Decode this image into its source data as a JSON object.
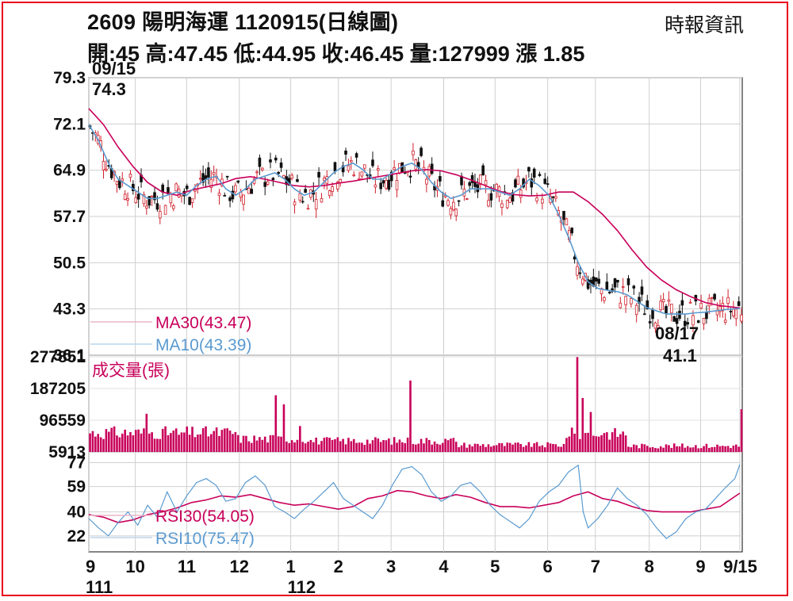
{
  "header": {
    "title": "2609  陽明海運 1120915(日線圖)",
    "source": "時報資訊",
    "quote": "開:45 高:47.45 低:44.95 收:46.45 量:127999 漲 1.85"
  },
  "chart_data": {
    "type": "line",
    "title": "2609 陽明海運 1120915(日線圖)",
    "price": {
      "y_ticks": [
        "79.3",
        "72.1",
        "64.9",
        "57.7",
        "50.5",
        "43.3",
        "36.1"
      ],
      "ylim": [
        36.1,
        79.3
      ],
      "annotations": [
        {
          "date": "09/15",
          "value": "74.3",
          "type": "high"
        },
        {
          "date": "08/17",
          "value": "41.1",
          "type": "low"
        }
      ],
      "series": [
        {
          "name": "MA30(43.47)",
          "color": "#c8005a",
          "x": [
            0,
            12,
            24,
            36,
            48,
            60,
            72,
            84,
            96,
            108,
            120,
            132,
            144,
            156,
            168,
            180,
            192,
            204,
            216,
            228,
            240,
            252,
            264,
            276,
            288,
            300,
            312,
            324,
            336,
            348,
            360,
            372,
            384,
            396,
            408,
            420,
            432,
            444,
            456,
            468,
            480,
            492,
            504,
            516,
            532
          ],
          "values": [
            74.5,
            72.0,
            68.5,
            65.5,
            63.0,
            61.5,
            61.0,
            61.8,
            62.3,
            62.8,
            63.6,
            63.9,
            63.5,
            63.0,
            62.5,
            62.3,
            62.5,
            62.9,
            63.2,
            63.6,
            64.0,
            64.4,
            64.8,
            65.0,
            64.8,
            64.2,
            63.4,
            62.5,
            61.6,
            61.1,
            60.9,
            61.0,
            61.5,
            61.5,
            60.0,
            58.0,
            55.5,
            52.5,
            49.8,
            47.8,
            46.3,
            45.2,
            44.3,
            43.8,
            43.47
          ]
        },
        {
          "name": "MA10(43.39)",
          "color": "#5a9ad0",
          "x": [
            0,
            8,
            16,
            24,
            32,
            40,
            48,
            56,
            64,
            72,
            80,
            88,
            96,
            104,
            112,
            120,
            128,
            136,
            144,
            152,
            160,
            168,
            176,
            184,
            192,
            200,
            208,
            216,
            224,
            232,
            240,
            248,
            256,
            264,
            272,
            280,
            288,
            296,
            304,
            312,
            320,
            328,
            336,
            344,
            352,
            360,
            368,
            376,
            384,
            392,
            400,
            408,
            416,
            424,
            432,
            440,
            448,
            456,
            464,
            472,
            480,
            488,
            496,
            504,
            512,
            520,
            532
          ],
          "values": [
            72.0,
            69.5,
            66.0,
            63.5,
            62.5,
            61.5,
            60.5,
            60.5,
            61.0,
            61.5,
            61.0,
            62.5,
            63.5,
            64.0,
            62.0,
            61.0,
            62.0,
            63.5,
            64.0,
            64.5,
            63.5,
            62.0,
            61.0,
            61.5,
            63.0,
            64.5,
            65.5,
            66.0,
            65.0,
            63.5,
            63.5,
            64.5,
            65.5,
            66.0,
            65.0,
            63.0,
            61.5,
            60.5,
            61.0,
            62.0,
            62.0,
            62.0,
            61.5,
            61.0,
            62.0,
            63.5,
            62.5,
            61.0,
            58.0,
            54.5,
            50.5,
            47.5,
            46.5,
            46.2,
            46.0,
            45.5,
            44.5,
            43.5,
            43.0,
            42.5,
            42.5,
            42.5,
            42.7,
            42.8,
            43.0,
            43.2,
            43.39
          ]
        }
      ]
    },
    "volume": {
      "label": "成交量(張)",
      "y_ticks": [
        "277851",
        "187205",
        "96559",
        "5913"
      ],
      "ylim": [
        5913,
        277851
      ],
      "color": "#c8005a",
      "spikes": [
        {
          "x": 48,
          "value": 115000
        },
        {
          "x": 73,
          "value": 55000
        },
        {
          "x": 154,
          "value": 168000
        },
        {
          "x": 160,
          "value": 142000
        },
        {
          "x": 172,
          "value": 80000
        },
        {
          "x": 264,
          "value": 210000
        },
        {
          "x": 300,
          "value": 35000
        },
        {
          "x": 392,
          "value": 50000
        },
        {
          "x": 400,
          "value": 277000
        },
        {
          "x": 404,
          "value": 160000
        },
        {
          "x": 410,
          "value": 120000
        },
        {
          "x": 422,
          "value": 60000
        },
        {
          "x": 534,
          "value": 128000
        }
      ]
    },
    "rsi": {
      "y_ticks": [
        "77",
        "59",
        "40",
        "22"
      ],
      "ylim": [
        10,
        85
      ],
      "series": [
        {
          "name": "RSI30(54.05)",
          "color": "#c8005a",
          "x": [
            0,
            12,
            24,
            36,
            48,
            60,
            72,
            84,
            96,
            108,
            120,
            132,
            144,
            156,
            168,
            180,
            192,
            204,
            216,
            228,
            240,
            252,
            264,
            276,
            288,
            300,
            312,
            324,
            336,
            348,
            360,
            372,
            384,
            396,
            408,
            420,
            432,
            444,
            456,
            468,
            480,
            492,
            504,
            516,
            532
          ],
          "values": [
            38,
            36,
            32,
            34,
            38,
            40,
            43,
            47,
            49,
            52,
            51,
            53,
            50,
            47,
            45,
            46,
            44,
            42,
            44,
            50,
            52,
            56,
            55,
            52,
            50,
            53,
            51,
            47,
            44,
            44,
            43,
            45,
            47,
            52,
            55,
            50,
            48,
            44,
            41,
            40,
            40,
            40,
            42,
            44,
            54.05
          ]
        },
        {
          "name": "RSI10(75.47)",
          "color": "#5a9ad0",
          "x": [
            0,
            8,
            16,
            24,
            32,
            40,
            48,
            56,
            64,
            72,
            80,
            88,
            96,
            104,
            112,
            120,
            128,
            136,
            144,
            152,
            160,
            168,
            176,
            184,
            192,
            200,
            208,
            216,
            224,
            232,
            240,
            248,
            256,
            264,
            272,
            280,
            288,
            296,
            304,
            312,
            320,
            328,
            336,
            344,
            352,
            360,
            368,
            376,
            384,
            392,
            400,
            404,
            408,
            416,
            424,
            432,
            440,
            448,
            456,
            464,
            472,
            480,
            488,
            496,
            504,
            512,
            520,
            528,
            532
          ],
          "values": [
            35,
            28,
            22,
            32,
            40,
            30,
            45,
            36,
            55,
            40,
            52,
            62,
            65,
            60,
            48,
            50,
            62,
            67,
            60,
            44,
            40,
            35,
            42,
            48,
            55,
            62,
            50,
            45,
            40,
            35,
            45,
            60,
            72,
            74,
            68,
            55,
            48,
            52,
            60,
            62,
            55,
            45,
            38,
            33,
            28,
            35,
            48,
            55,
            60,
            70,
            75,
            40,
            28,
            35,
            45,
            58,
            50,
            45,
            38,
            28,
            20,
            25,
            35,
            40,
            42,
            50,
            58,
            65,
            75.47
          ]
        }
      ]
    },
    "x_ticks": [
      {
        "x": 0,
        "label": "9"
      },
      {
        "x": 38,
        "label": "10"
      },
      {
        "x": 80,
        "label": "11"
      },
      {
        "x": 123,
        "label": "12"
      },
      {
        "x": 165,
        "label": "1"
      },
      {
        "x": 204,
        "label": "2"
      },
      {
        "x": 247,
        "label": "3"
      },
      {
        "x": 290,
        "label": "4"
      },
      {
        "x": 332,
        "label": "5"
      },
      {
        "x": 375,
        "label": "6"
      },
      {
        "x": 414,
        "label": "7"
      },
      {
        "x": 458,
        "label": "8"
      },
      {
        "x": 500,
        "label": "9"
      },
      {
        "x": 532,
        "label": "9/15"
      }
    ],
    "year_labels": [
      {
        "x": 0,
        "label": "111"
      },
      {
        "x": 165,
        "label": "112"
      }
    ],
    "grid": true
  }
}
